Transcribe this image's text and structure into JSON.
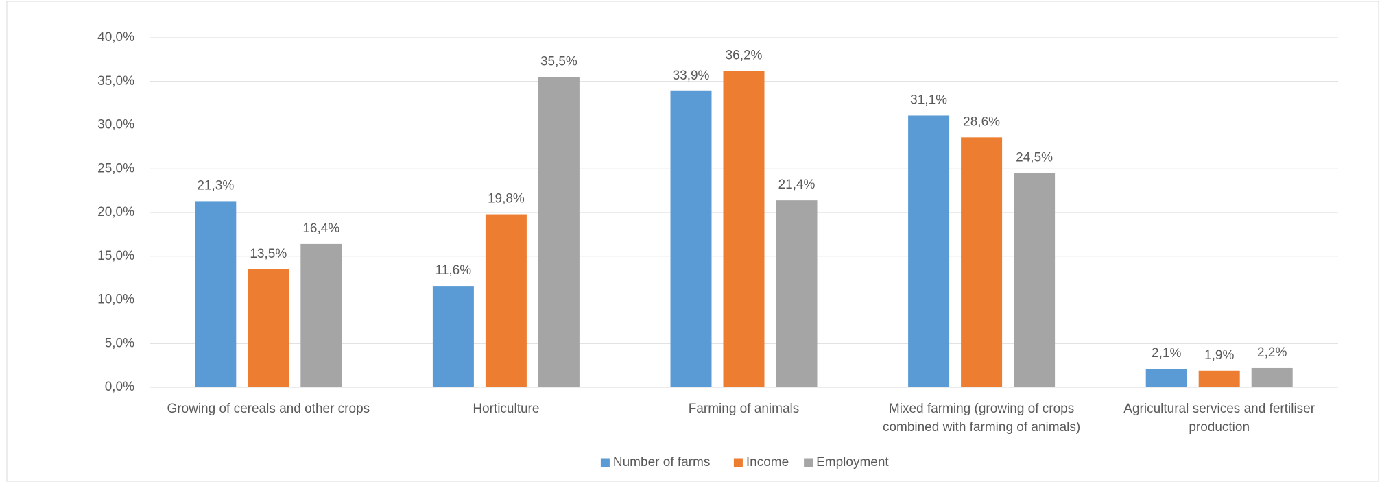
{
  "chart_data": {
    "type": "bar",
    "categories": [
      "Growing of cereals and other crops",
      "Horticulture",
      "Farming of animals",
      "Mixed farming (growing of crops combined with farming of animals)",
      "Agricultural services and fertiliser production"
    ],
    "series": [
      {
        "name": "Number of farms",
        "color": "#5b9bd5",
        "values": [
          21.3,
          11.6,
          33.9,
          31.1,
          2.1
        ],
        "value_labels": [
          "21,3%",
          "11,6%",
          "33,9%",
          "31,1%",
          "2,1%"
        ]
      },
      {
        "name": "Income",
        "color": "#ed7d31",
        "values": [
          13.5,
          19.8,
          36.2,
          28.6,
          1.9
        ],
        "value_labels": [
          "13,5%",
          "19,8%",
          "36,2%",
          "28,6%",
          "1,9%"
        ]
      },
      {
        "name": "Employment",
        "color": "#a5a5a5",
        "values": [
          16.4,
          35.5,
          21.4,
          24.5,
          2.2
        ],
        "value_labels": [
          "16,4%",
          "35,5%",
          "21,4%",
          "24,5%",
          "2,2%"
        ]
      }
    ],
    "ylim": [
      0,
      40
    ],
    "yticks": [
      {
        "value": 0,
        "label": "0,0%"
      },
      {
        "value": 5,
        "label": "5,0%"
      },
      {
        "value": 10,
        "label": "10,0%"
      },
      {
        "value": 15,
        "label": "15,0%"
      },
      {
        "value": 20,
        "label": "20,0%"
      },
      {
        "value": 25,
        "label": "25,0%"
      },
      {
        "value": 30,
        "label": "30,0%"
      },
      {
        "value": 35,
        "label": "35,0%"
      },
      {
        "value": 40,
        "label": "40,0%"
      }
    ],
    "grid": true,
    "legend": "bottom"
  }
}
